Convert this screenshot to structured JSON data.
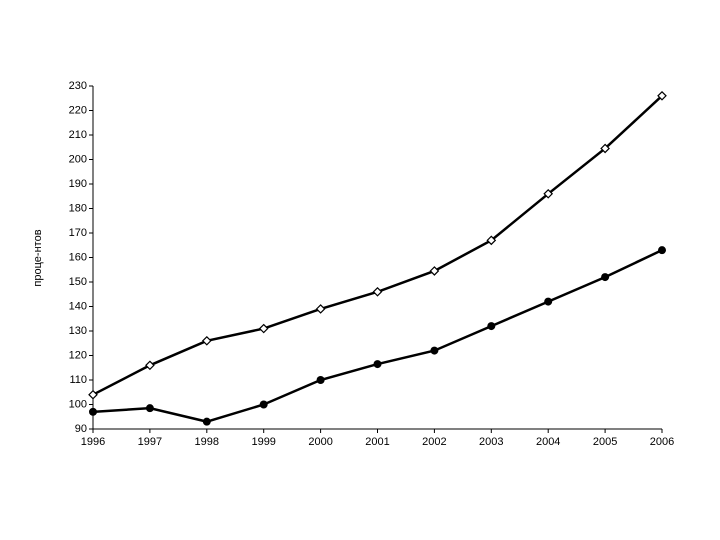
{
  "chart_data": {
    "type": "line",
    "y_label": "проце-нтов",
    "x": [
      1996,
      1997,
      1998,
      1999,
      2000,
      2001,
      2002,
      2003,
      2004,
      2005,
      2006
    ],
    "xlim": [
      1996,
      2006
    ],
    "xticks": [
      1996,
      1997,
      1998,
      1999,
      2000,
      2001,
      2002,
      2003,
      2004,
      2005,
      2006
    ],
    "ylim": [
      90,
      230
    ],
    "yticks": [
      90,
      100,
      110,
      120,
      130,
      140,
      150,
      160,
      170,
      180,
      190,
      200,
      210,
      220,
      230
    ],
    "series": [
      {
        "color": "#000000",
        "marker": "diamond",
        "values": [
          104,
          116,
          126,
          131,
          139,
          146,
          154.5,
          167,
          186,
          204.5,
          226
        ]
      },
      {
        "color": "#000000",
        "marker": "circle",
        "values": [
          97,
          98.5,
          93,
          100,
          110,
          116.5,
          122,
          132,
          142,
          152,
          163
        ]
      }
    ]
  }
}
